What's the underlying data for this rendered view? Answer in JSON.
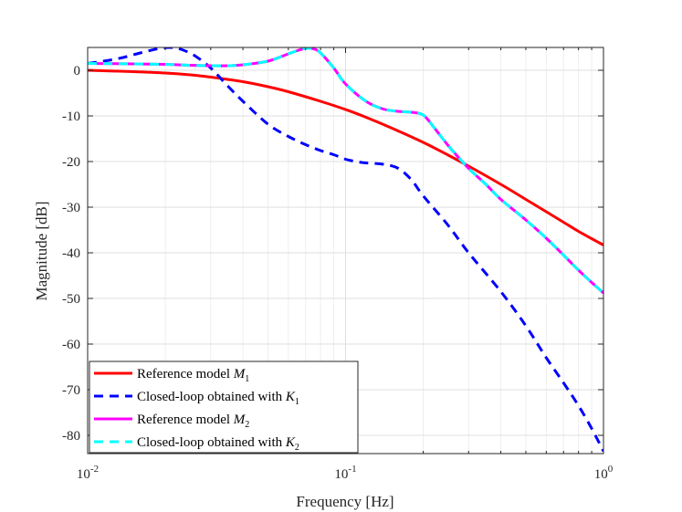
{
  "chart_data": {
    "type": "line",
    "xscale": "log",
    "xlim": [
      0.01,
      1
    ],
    "ylim": [
      -84,
      5
    ],
    "xlabel": "Frequency [Hz]",
    "ylabel": "Magnitude [dB]",
    "grid": true,
    "legend_position": "bottom-left",
    "x_ticks": [
      {
        "value": 0.01,
        "base": "10",
        "exp": "-2"
      },
      {
        "value": 0.1,
        "base": "10",
        "exp": "-1"
      },
      {
        "value": 1,
        "base": "10",
        "exp": "0"
      }
    ],
    "y_ticks": [
      0,
      -10,
      -20,
      -30,
      -40,
      -50,
      -60,
      -70,
      -80
    ],
    "series": [
      {
        "name": "Reference model M1",
        "legend_main": "Reference model ",
        "legend_var": "M",
        "legend_sub": "1",
        "color": "#ff0000",
        "dash": "solid",
        "x": [
          0.01,
          0.015,
          0.02,
          0.025,
          0.03,
          0.04,
          0.05,
          0.06,
          0.08,
          0.1,
          0.12,
          0.15,
          0.2,
          0.25,
          0.3,
          0.4,
          0.5,
          0.6,
          0.7,
          0.8,
          0.9,
          1.0
        ],
        "y": [
          0,
          -0.3,
          -0.6,
          -1.0,
          -1.5,
          -2.5,
          -3.6,
          -4.7,
          -6.8,
          -8.6,
          -10.3,
          -12.6,
          -15.8,
          -18.6,
          -21.0,
          -25.0,
          -28.3,
          -31.0,
          -33.3,
          -35.3,
          -36.9,
          -38.3
        ]
      },
      {
        "name": "Closed-loop obtained with K1",
        "legend_main": "Closed-loop obtained with ",
        "legend_var": "K",
        "legend_sub": "1",
        "color": "#0000ff",
        "dash": "dashed",
        "x": [
          0.01,
          0.013,
          0.016,
          0.019,
          0.021,
          0.023,
          0.026,
          0.03,
          0.035,
          0.04,
          0.05,
          0.06,
          0.07,
          0.08,
          0.09,
          0.1,
          0.11,
          0.12,
          0.14,
          0.16,
          0.18,
          0.2,
          0.25,
          0.3,
          0.4,
          0.5,
          0.6,
          0.7,
          0.8,
          0.9,
          1.0
        ],
        "y": [
          1.5,
          2.5,
          3.8,
          4.8,
          5.0,
          4.6,
          3.2,
          0.5,
          -3.5,
          -6.8,
          -11.8,
          -14.5,
          -16.3,
          -17.6,
          -18.5,
          -19.5,
          -20.0,
          -20.3,
          -20.6,
          -21.5,
          -24.0,
          -27.5,
          -34.0,
          -40.0,
          -48.5,
          -56.0,
          -63.0,
          -68.5,
          -73.5,
          -78.5,
          -83.5
        ]
      },
      {
        "name": "Reference model M2",
        "legend_main": "Reference model ",
        "legend_var": "M",
        "legend_sub": "2",
        "color": "#ff00ff",
        "dash": "solid",
        "x": [
          0.01,
          0.015,
          0.02,
          0.025,
          0.03,
          0.035,
          0.04,
          0.05,
          0.06,
          0.065,
          0.07,
          0.075,
          0.08,
          0.09,
          0.1,
          0.12,
          0.14,
          0.16,
          0.18,
          0.2,
          0.22,
          0.25,
          0.3,
          0.35,
          0.4,
          0.5,
          0.6,
          0.7,
          0.8,
          0.9,
          1.0
        ],
        "y": [
          1.5,
          1.4,
          1.3,
          1.1,
          1.0,
          1.0,
          1.2,
          2.0,
          3.6,
          4.3,
          4.8,
          4.7,
          3.8,
          0.5,
          -3.0,
          -6.8,
          -8.5,
          -9.0,
          -9.2,
          -9.8,
          -12.5,
          -16.5,
          -21.5,
          -25.0,
          -28.3,
          -32.8,
          -36.8,
          -40.5,
          -43.8,
          -46.5,
          -48.8
        ]
      },
      {
        "name": "Closed-loop obtained with K2",
        "legend_main": "Closed-loop obtained with ",
        "legend_var": "K",
        "legend_sub": "2",
        "color": "#00ffff",
        "dash": "dashed",
        "x": [
          0.01,
          0.015,
          0.02,
          0.025,
          0.03,
          0.035,
          0.04,
          0.05,
          0.06,
          0.065,
          0.07,
          0.075,
          0.08,
          0.09,
          0.1,
          0.12,
          0.14,
          0.16,
          0.18,
          0.2,
          0.22,
          0.25,
          0.3,
          0.35,
          0.4,
          0.5,
          0.6,
          0.7,
          0.8,
          0.9,
          1.0
        ],
        "y": [
          1.5,
          1.4,
          1.3,
          1.1,
          1.0,
          1.0,
          1.2,
          2.0,
          3.6,
          4.3,
          4.8,
          4.7,
          3.8,
          0.5,
          -3.0,
          -6.8,
          -8.5,
          -9.0,
          -9.2,
          -9.8,
          -12.5,
          -16.5,
          -21.5,
          -25.0,
          -28.3,
          -32.8,
          -36.8,
          -40.5,
          -43.8,
          -46.5,
          -48.8
        ]
      }
    ]
  }
}
